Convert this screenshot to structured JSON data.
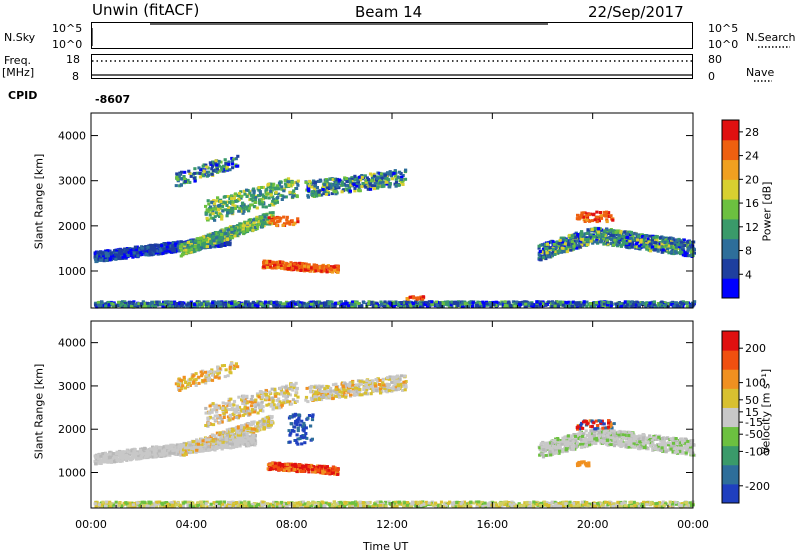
{
  "header": {
    "station": "Unwin (fitACF)",
    "beam": "Beam 14",
    "date": "22/Sep/2017"
  },
  "strips": {
    "nsky_label": "N.Sky",
    "nsky_ticks": [
      "10^5",
      "10^0"
    ],
    "nsearch_label": "N.Search",
    "nsearch_ticks": [
      "10^5",
      "10^0"
    ],
    "freq_label": "Freq.",
    "freq_unit": "[MHz]",
    "freq_ticks": [
      "18",
      "8"
    ],
    "nave_label": "Nave",
    "nave_ticks": [
      "80",
      "0"
    ],
    "cpid_label": "CPID",
    "cpid_value": "-8607"
  },
  "chart_data": [
    {
      "type": "heatmap",
      "panel": "power",
      "ylabel": "Slant Range [km]",
      "xlabel": "Time UT",
      "x_ticks": [
        "00:00",
        "04:00",
        "08:00",
        "12:00",
        "16:00",
        "20:00",
        "00:00"
      ],
      "xlim_hours": [
        0,
        24
      ],
      "y_ticks": [
        1000,
        2000,
        3000,
        4000
      ],
      "ylim_km": [
        180,
        4500
      ],
      "colorbar_label": "Power [dB]",
      "colorbar_ticks": [
        4,
        8,
        12,
        16,
        20,
        24,
        28
      ],
      "colorbar_range": [
        0,
        30
      ],
      "colors": [
        "#0000ff",
        "#1e3f9f",
        "#2e6e9a",
        "#3a9a6a",
        "#6cc040",
        "#d8d030",
        "#f0a020",
        "#ee6010",
        "#e01010"
      ]
    },
    {
      "type": "heatmap",
      "panel": "velocity",
      "ylabel": "Slant Range [km]",
      "xlabel": "Time UT",
      "x_ticks": [
        "00:00",
        "04:00",
        "08:00",
        "12:00",
        "16:00",
        "20:00",
        "00:00"
      ],
      "xlim_hours": [
        0,
        24
      ],
      "y_ticks": [
        1000,
        2000,
        3000,
        4000
      ],
      "ylim_km": [
        180,
        4500
      ],
      "colorbar_label": "Velocity [m s⁻¹]",
      "colorbar_ticks": [
        200,
        100,
        50,
        15,
        -15,
        -50,
        -100,
        -200
      ],
      "colorbar_range": [
        -250,
        250
      ],
      "colors": [
        "#1f3fbf",
        "#2e6e9a",
        "#3a9a6a",
        "#6cc040",
        "#c8c8c8",
        "#d8c030",
        "#f09020",
        "#f05010",
        "#e01010"
      ]
    }
  ]
}
